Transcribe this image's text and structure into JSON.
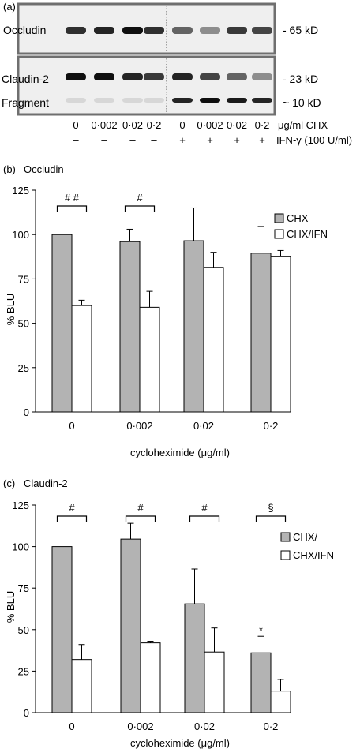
{
  "panel_a": {
    "label": "(a)",
    "occludin_label": "Occludin",
    "occludin_size": "- 65 kD",
    "claudin_label": "Claudin-2",
    "claudin_size": "- 23 kD",
    "fragment_label": "Fragment",
    "fragment_size": "~ 10 kD",
    "doses": [
      "0",
      "0·002",
      "0·02",
      "0·2",
      "0",
      "0·002",
      "0·02",
      "0·2"
    ],
    "dose_unit": "μg/ml CHX",
    "ifn_signs": [
      "–",
      "–",
      "–",
      "–",
      "+",
      "+",
      "+",
      "+"
    ],
    "ifn_label": "IFN-γ (100 U/ml)",
    "occludin_band_intensity": [
      0.85,
      0.9,
      1.0,
      0.85,
      0.6,
      0.4,
      0.8,
      0.75
    ],
    "claudin_band_intensity": [
      1.0,
      1.0,
      0.9,
      0.8,
      0.9,
      0.75,
      0.6,
      0.4
    ],
    "fragment_band_intensity": [
      0.05,
      0.05,
      0.05,
      0.05,
      0.9,
      1.0,
      0.95,
      0.9
    ]
  },
  "chart_data": [
    {
      "type": "bar",
      "panel_label": "(b)",
      "title": "Occludin",
      "categories": [
        "0",
        "0·002",
        "0·02",
        "0·2"
      ],
      "series": [
        {
          "name": "CHX",
          "values": [
            100,
            96,
            96.5,
            89.5
          ],
          "errors": [
            0,
            7,
            18.5,
            15
          ],
          "color": "#b3b3b3"
        },
        {
          "name": "CHX/IFN",
          "values": [
            60,
            59,
            81.5,
            87.5
          ],
          "errors": [
            3,
            9,
            8.5,
            3.5
          ],
          "color": "#ffffff"
        }
      ],
      "xlabel": "cycloheximide (μg/ml)",
      "ylabel": "% BLU",
      "ylim": [
        0,
        125
      ],
      "yticks": [
        "0",
        "25",
        "50",
        "75",
        "100",
        "125"
      ],
      "significance": [
        "# #",
        "#",
        "",
        ""
      ],
      "bar_marks": [
        "",
        "",
        "",
        ""
      ],
      "legend_position": "top-right",
      "grid": false
    },
    {
      "type": "bar",
      "panel_label": "(c)",
      "title": "Claudin-2",
      "categories": [
        "0",
        "0·002",
        "0·02",
        "0·2"
      ],
      "series": [
        {
          "name": "CHX/",
          "values": [
            100,
            104.5,
            65.5,
            36
          ],
          "errors": [
            0,
            9.5,
            21,
            10
          ],
          "color": "#b3b3b3"
        },
        {
          "name": "CHX/IFN",
          "values": [
            32,
            42,
            36.5,
            13
          ],
          "errors": [
            9,
            1,
            14.5,
            7
          ],
          "color": "#ffffff"
        }
      ],
      "xlabel": "cycloheximide (μg/ml)",
      "ylabel": "% BLU",
      "ylim": [
        0,
        125
      ],
      "yticks": [
        "0",
        "25",
        "50",
        "75",
        "100",
        "125"
      ],
      "significance": [
        "#",
        "#",
        "#",
        "§"
      ],
      "bar_marks": [
        "",
        "",
        "",
        "*"
      ],
      "legend_position": "top-right",
      "grid": false
    }
  ]
}
